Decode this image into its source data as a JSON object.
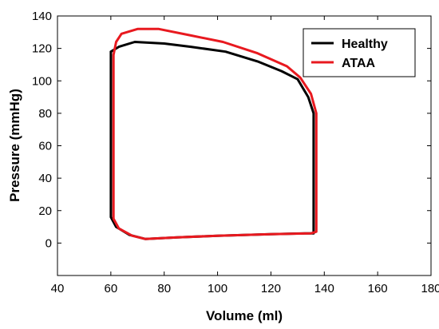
{
  "chart_data": {
    "type": "line",
    "title": "",
    "xlabel": "Volume (ml)",
    "ylabel": "Pressure (mmHg)",
    "xlim": [
      40,
      180
    ],
    "ylim": [
      -20,
      140
    ],
    "xticks": [
      40,
      60,
      80,
      100,
      120,
      140,
      160,
      180
    ],
    "yticks": [
      0,
      20,
      40,
      60,
      80,
      100,
      120,
      140
    ],
    "grid": false,
    "legend_position": "top-right",
    "series": [
      {
        "name": "Healthy",
        "color": "#000000",
        "x": [
          60,
          63,
          69,
          80,
          90,
          103,
          115,
          124,
          130,
          134,
          136,
          136,
          134,
          120,
          100,
          85,
          73,
          67,
          62,
          60,
          60
        ],
        "y": [
          118,
          121,
          124,
          123,
          121,
          118,
          112,
          106,
          101,
          90,
          80,
          6,
          6,
          5.5,
          4.5,
          3.5,
          2.5,
          5,
          10,
          16,
          118
        ]
      },
      {
        "name": "ATAA",
        "color": "#e8191f",
        "x": [
          61,
          62,
          64,
          70,
          78,
          90,
          102,
          115,
          126,
          131,
          135,
          137,
          137,
          135,
          120,
          100,
          85,
          73,
          68,
          63,
          61,
          61
        ],
        "y": [
          116,
          124,
          129,
          132,
          132,
          128,
          124,
          117,
          109,
          102,
          92,
          80,
          7,
          6,
          5.5,
          4.5,
          3.5,
          2.5,
          4.5,
          9,
          15,
          116
        ]
      }
    ]
  }
}
